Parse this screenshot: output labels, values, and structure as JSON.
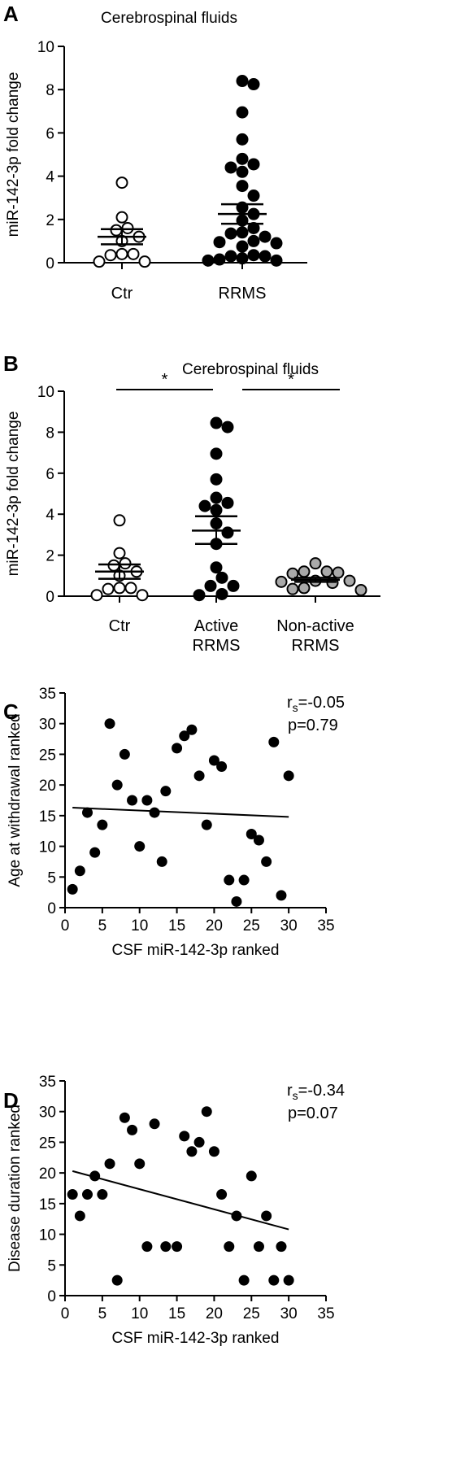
{
  "chart_data": [
    {
      "panel": "A",
      "type": "scatter",
      "title": "Cerebrospinal fluids",
      "ylabel": "miR-142-3p fold change",
      "ylim": [
        0,
        10
      ],
      "yticks": [
        "0",
        "2",
        "4",
        "6",
        "8",
        "10"
      ],
      "categories": [
        "Ctr",
        "RRMS"
      ],
      "series": [
        {
          "category": "Ctr",
          "fill": "#ffffff",
          "mean": 1.2,
          "sem_low": 0.85,
          "sem_high": 1.55,
          "values": [
            3.7,
            2.1,
            1.6,
            1.5,
            1.2,
            1.0,
            0.4,
            0.4,
            0.35,
            0.05,
            0.05
          ]
        },
        {
          "category": "RRMS",
          "fill": "#000000",
          "mean": 2.25,
          "sem_low": 1.8,
          "sem_high": 2.7,
          "values": [
            8.4,
            8.25,
            6.95,
            5.7,
            4.8,
            4.55,
            4.4,
            4.2,
            3.55,
            3.1,
            2.55,
            2.25,
            1.95,
            1.6,
            1.4,
            1.35,
            1.2,
            1.0,
            0.95,
            0.9,
            0.75,
            0.35,
            0.3,
            0.3,
            0.2,
            0.15,
            0.1,
            0.1
          ]
        }
      ]
    },
    {
      "panel": "B",
      "type": "scatter",
      "title": "Cerebrospinal fluids",
      "ylabel": "miR-142-3p fold change",
      "ylim": [
        0,
        10
      ],
      "yticks": [
        "0",
        "2",
        "4",
        "6",
        "8",
        "10"
      ],
      "categories": [
        [
          "Ctr"
        ],
        [
          "Active",
          "RRMS"
        ],
        [
          "Non-active",
          "RRMS"
        ]
      ],
      "significance": [
        {
          "from": 0,
          "to": 1,
          "label": "*"
        },
        {
          "from": 1,
          "to": 2,
          "label": "*"
        }
      ],
      "series": [
        {
          "category": "Ctr",
          "fill": "#ffffff",
          "mean": 1.2,
          "sem_low": 0.85,
          "sem_high": 1.55,
          "values": [
            3.7,
            2.1,
            1.6,
            1.5,
            1.2,
            1.0,
            0.4,
            0.4,
            0.35,
            0.05,
            0.05
          ]
        },
        {
          "category": "Active RRMS",
          "fill": "#000000",
          "mean": 3.2,
          "sem_low": 2.55,
          "sem_high": 3.9,
          "values": [
            8.45,
            8.25,
            6.95,
            5.7,
            4.8,
            4.55,
            4.4,
            4.2,
            3.55,
            3.1,
            2.55,
            1.4,
            0.9,
            0.5,
            0.5,
            0.1,
            0.05
          ]
        },
        {
          "category": "Non-active RRMS",
          "fill": "#a9a9a9",
          "mean": 0.8,
          "sem_low": 0.7,
          "sem_high": 0.9,
          "values": [
            1.6,
            1.2,
            1.2,
            1.15,
            1.1,
            0.75,
            0.75,
            0.7,
            0.65,
            0.4,
            0.35,
            0.3
          ]
        }
      ]
    },
    {
      "panel": "C",
      "type": "scatter",
      "xlabel": "CSF miR-142-3p ranked",
      "ylabel": "Age at withdrawal ranked",
      "xlim": [
        0,
        35
      ],
      "ylim": [
        0,
        35
      ],
      "xticks": [
        "0",
        "5",
        "10",
        "15",
        "20",
        "25",
        "30",
        "35"
      ],
      "yticks": [
        "0",
        "5",
        "10",
        "15",
        "20",
        "25",
        "30",
        "35"
      ],
      "annotation": {
        "rs_prefix": "r",
        "rs_sub": "s",
        "rs_value": "=-0.05",
        "p": "p=0.79"
      },
      "regression": {
        "x": [
          1,
          30
        ],
        "y": [
          16.3,
          14.8
        ]
      },
      "points": [
        [
          1,
          3
        ],
        [
          2,
          6
        ],
        [
          3,
          15.5
        ],
        [
          4,
          9
        ],
        [
          5,
          13.5
        ],
        [
          6,
          30
        ],
        [
          7,
          20
        ],
        [
          8,
          25
        ],
        [
          9,
          17.5
        ],
        [
          10,
          10
        ],
        [
          11,
          17.5
        ],
        [
          12,
          15.5
        ],
        [
          13,
          7.5
        ],
        [
          13.5,
          19
        ],
        [
          15,
          26
        ],
        [
          16,
          28
        ],
        [
          17,
          29
        ],
        [
          18,
          21.5
        ],
        [
          19,
          13.5
        ],
        [
          20,
          24
        ],
        [
          21,
          23
        ],
        [
          22,
          4.5
        ],
        [
          23,
          1
        ],
        [
          24,
          4.5
        ],
        [
          25,
          12
        ],
        [
          26,
          11
        ],
        [
          27,
          7.5
        ],
        [
          28,
          27
        ],
        [
          29,
          2
        ],
        [
          30,
          21.5
        ]
      ]
    },
    {
      "panel": "D",
      "type": "scatter",
      "xlabel": "CSF miR-142-3p ranked",
      "ylabel": "Disease duration ranked",
      "xlim": [
        0,
        35
      ],
      "ylim": [
        0,
        35
      ],
      "xticks": [
        "0",
        "5",
        "10",
        "15",
        "20",
        "25",
        "30",
        "35"
      ],
      "yticks": [
        "0",
        "5",
        "10",
        "15",
        "20",
        "25",
        "30",
        "35"
      ],
      "annotation": {
        "rs_prefix": "r",
        "rs_sub": "s",
        "rs_value": "=-0.34",
        "p": "p=0.07"
      },
      "regression": {
        "x": [
          1,
          30
        ],
        "y": [
          20.3,
          10.8
        ]
      },
      "points": [
        [
          1,
          16.5
        ],
        [
          2,
          13
        ],
        [
          3,
          16.5
        ],
        [
          4,
          19.5
        ],
        [
          5,
          16.5
        ],
        [
          6,
          21.5
        ],
        [
          7,
          2.5
        ],
        [
          8,
          29
        ],
        [
          9,
          27
        ],
        [
          10,
          21.5
        ],
        [
          11,
          8
        ],
        [
          12,
          28
        ],
        [
          13.5,
          8
        ],
        [
          15,
          8
        ],
        [
          16,
          26
        ],
        [
          17,
          23.5
        ],
        [
          18,
          25
        ],
        [
          19,
          30
        ],
        [
          20,
          23.5
        ],
        [
          21,
          16.5
        ],
        [
          22,
          8
        ],
        [
          23,
          13
        ],
        [
          24,
          2.5
        ],
        [
          25,
          19.5
        ],
        [
          26,
          8
        ],
        [
          27,
          13
        ],
        [
          28,
          2.5
        ],
        [
          29,
          8
        ],
        [
          30,
          2.5
        ]
      ]
    }
  ],
  "panel_letters": {
    "a": "A",
    "b": "B",
    "c": "C",
    "d": "D"
  }
}
